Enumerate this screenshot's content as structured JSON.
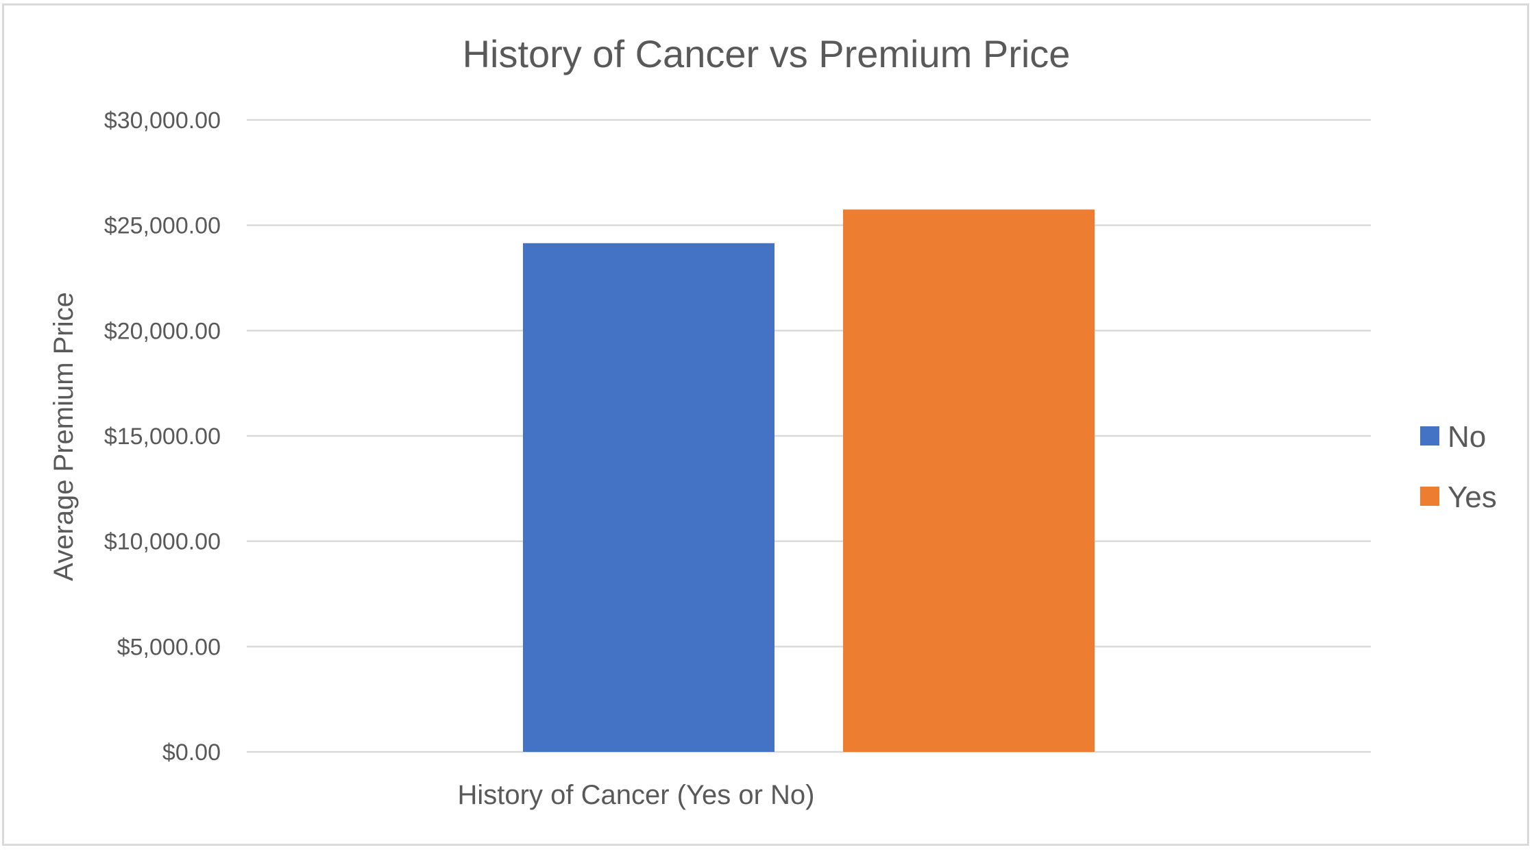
{
  "chart_data": {
    "type": "bar",
    "title": "History of Cancer vs Premium Price",
    "xlabel": "History of Cancer (Yes or No)",
    "ylabel": "Average Premium Price",
    "categories": [
      "History of Cancer (Yes or No)"
    ],
    "series": [
      {
        "name": "No",
        "values": [
          24150
        ],
        "color": "#4472c4"
      },
      {
        "name": "Yes",
        "values": [
          25750
        ],
        "color": "#ed7d31"
      }
    ],
    "ylim": [
      0,
      30000
    ],
    "yticks": [
      {
        "value": 0,
        "label": "$0.00"
      },
      {
        "value": 5000,
        "label": "$5,000.00"
      },
      {
        "value": 10000,
        "label": "$10,000.00"
      },
      {
        "value": 15000,
        "label": "$15,000.00"
      },
      {
        "value": 20000,
        "label": "$20,000.00"
      },
      {
        "value": 25000,
        "label": "$25,000.00"
      },
      {
        "value": 30000,
        "label": "$30,000.00"
      }
    ],
    "grid": true,
    "legend_position": "right"
  }
}
